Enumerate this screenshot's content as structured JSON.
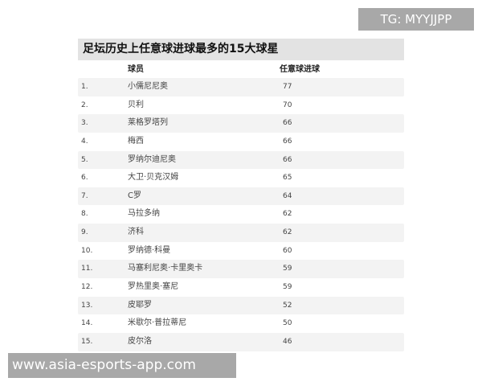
{
  "watermark_top": "TG: MYYJJPP",
  "watermark_bottom": "www.asia-esports-app.com",
  "title": "足坛历史上任意球进球最多的15大球星",
  "headers": {
    "player": "球员",
    "goals": "任意球进球"
  },
  "rows": [
    {
      "rank": "1.",
      "name": "小儒尼尼奥",
      "goals": "77"
    },
    {
      "rank": "2.",
      "name": "贝利",
      "goals": "70"
    },
    {
      "rank": "3.",
      "name": "莱格罗塔列",
      "goals": "66"
    },
    {
      "rank": "4.",
      "name": "梅西",
      "goals": "66"
    },
    {
      "rank": "5.",
      "name": "罗纳尔迪尼奥",
      "goals": "66"
    },
    {
      "rank": "6.",
      "name": "大卫·贝克汉姆",
      "goals": "65"
    },
    {
      "rank": "7.",
      "name": "C罗",
      "goals": "64"
    },
    {
      "rank": "8.",
      "name": "马拉多纳",
      "goals": "62"
    },
    {
      "rank": "9.",
      "name": "济科",
      "goals": "62"
    },
    {
      "rank": "10.",
      "name": "罗纳德·科曼",
      "goals": "60"
    },
    {
      "rank": "11.",
      "name": "马塞利尼奥·卡里奥卡",
      "goals": "59"
    },
    {
      "rank": "12.",
      "name": "罗热里奥·塞尼",
      "goals": "59"
    },
    {
      "rank": "13.",
      "name": "皮耶罗",
      "goals": "52"
    },
    {
      "rank": "14.",
      "name": "米歇尔·普拉蒂尼",
      "goals": "50"
    },
    {
      "rank": "15.",
      "name": "皮尔洛",
      "goals": "46"
    }
  ]
}
